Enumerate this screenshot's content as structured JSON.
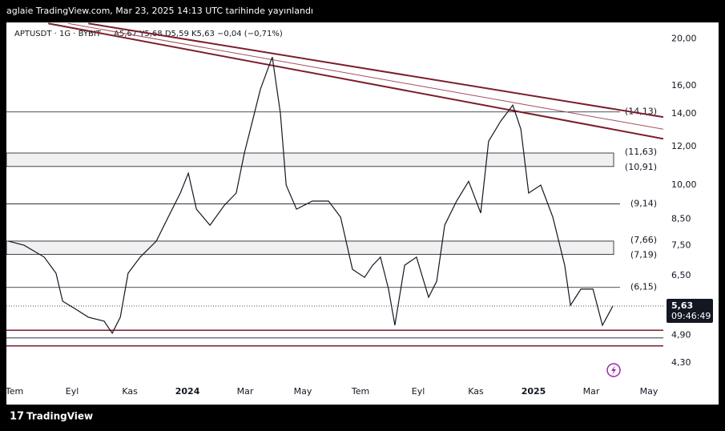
{
  "header": {
    "publish_text": "aglaie TradingView.com, Mar 23, 2025 14:13 UTC tarihinde yayınlandı",
    "brand": "TradingView"
  },
  "chart_data": {
    "type": "line",
    "symbol": "APTUSDT · 1G · BYBIT",
    "ohlc_text": "A5,67 Y5,68 D5,59 K5,63 −0,04 (−0,71%)",
    "log_scale": true,
    "grid": false,
    "xlim": [
      -0.28,
      22.5
    ],
    "xticks": [
      {
        "value": 0,
        "label": "Tem"
      },
      {
        "value": 2,
        "label": "Eyl"
      },
      {
        "value": 4,
        "label": "Kas"
      },
      {
        "value": 6,
        "label": "2024"
      },
      {
        "value": 8,
        "label": "Mar"
      },
      {
        "value": 10,
        "label": "May"
      },
      {
        "value": 12,
        "label": "Tem"
      },
      {
        "value": 14,
        "label": "Eyl"
      },
      {
        "value": 16,
        "label": "Kas"
      },
      {
        "value": 18,
        "label": "2025"
      },
      {
        "value": 20,
        "label": "Mar"
      },
      {
        "value": 22,
        "label": "May"
      }
    ],
    "ylim": [
      4.0,
      21.6
    ],
    "yticks": [
      {
        "value": 20,
        "label": "20,00"
      },
      {
        "value": 16,
        "label": "16,00"
      },
      {
        "value": 14,
        "label": "14,00"
      },
      {
        "value": 12,
        "label": "12,00"
      },
      {
        "value": 10,
        "label": "10,00"
      },
      {
        "value": 8.5,
        "label": "8,50"
      },
      {
        "value": 7.5,
        "label": "7,50"
      },
      {
        "value": 6.5,
        "label": "6,50"
      },
      {
        "value": 4.9,
        "label": "4,90"
      },
      {
        "value": 4.3,
        "label": "4,30"
      }
    ],
    "series": [
      {
        "color": "#131722",
        "x": [
          -0.22,
          0.33,
          1.03,
          1.44,
          1.67,
          2.14,
          2.56,
          3.11,
          3.39,
          3.67,
          3.94,
          4.36,
          4.92,
          5.33,
          5.75,
          6.03,
          6.31,
          6.78,
          7.28,
          7.69,
          7.97,
          8.25,
          8.53,
          8.94,
          9.22,
          9.42,
          9.78,
          10.33,
          10.89,
          11.31,
          11.72,
          12.14,
          12.42,
          12.69,
          12.97,
          13.19,
          13.53,
          13.94,
          14.36,
          14.64,
          14.92,
          15.33,
          15.75,
          16.17,
          16.44,
          16.86,
          17.28,
          17.56,
          17.83,
          18.25,
          18.67,
          19.08,
          19.28,
          19.64,
          20.06,
          20.39,
          20.75
        ],
        "values": [
          7.66,
          7.51,
          7.1,
          6.58,
          5.76,
          5.54,
          5.34,
          5.24,
          4.95,
          5.34,
          6.58,
          7.1,
          7.66,
          8.58,
          9.62,
          10.57,
          8.91,
          8.26,
          9.08,
          9.62,
          11.62,
          13.53,
          15.75,
          18.33,
          14.05,
          9.99,
          8.91,
          9.26,
          9.26,
          8.58,
          6.7,
          6.45,
          6.83,
          7.1,
          6.1,
          5.14,
          6.83,
          7.1,
          5.87,
          6.33,
          8.26,
          9.26,
          10.17,
          8.75,
          12.3,
          13.53,
          14.59,
          13.02,
          9.62,
          9.99,
          8.58,
          6.83,
          5.65,
          6.1,
          6.1,
          5.14,
          5.63
        ]
      }
    ],
    "levels": [
      {
        "value": 14.13,
        "label": "(14,13)"
      },
      {
        "value": 9.14,
        "label": "(9,14)"
      },
      {
        "value": 6.15,
        "label": "(6,15)"
      }
    ],
    "zones": [
      {
        "top": 11.63,
        "bottom": 10.91,
        "top_label": "(11,63)",
        "bottom_label": "(10,91)"
      },
      {
        "top": 7.66,
        "bottom": 7.19,
        "top_label": "(7,66)",
        "bottom_label": "(7,19)"
      }
    ],
    "lines": [
      {
        "value": 5.02,
        "color": "#7b1f2b"
      },
      {
        "value": 4.84,
        "color": "#131722"
      },
      {
        "value": 4.66,
        "color": "#7b1f2b"
      }
    ],
    "trendlines": [
      {
        "x": [
          2.56,
          22.5
        ],
        "values": [
          21.5,
          13.79
        ],
        "color": "#7b1f2b"
      },
      {
        "x": [
          1.86,
          22.5
        ],
        "values": [
          21.5,
          13.02
        ],
        "color": "#a0505e"
      },
      {
        "x": [
          1.17,
          22.5
        ],
        "values": [
          21.5,
          12.44
        ],
        "color": "#7b1f2b"
      }
    ],
    "last": {
      "value": 5.63,
      "label": "5,63",
      "countdown": "09:46:49"
    }
  }
}
